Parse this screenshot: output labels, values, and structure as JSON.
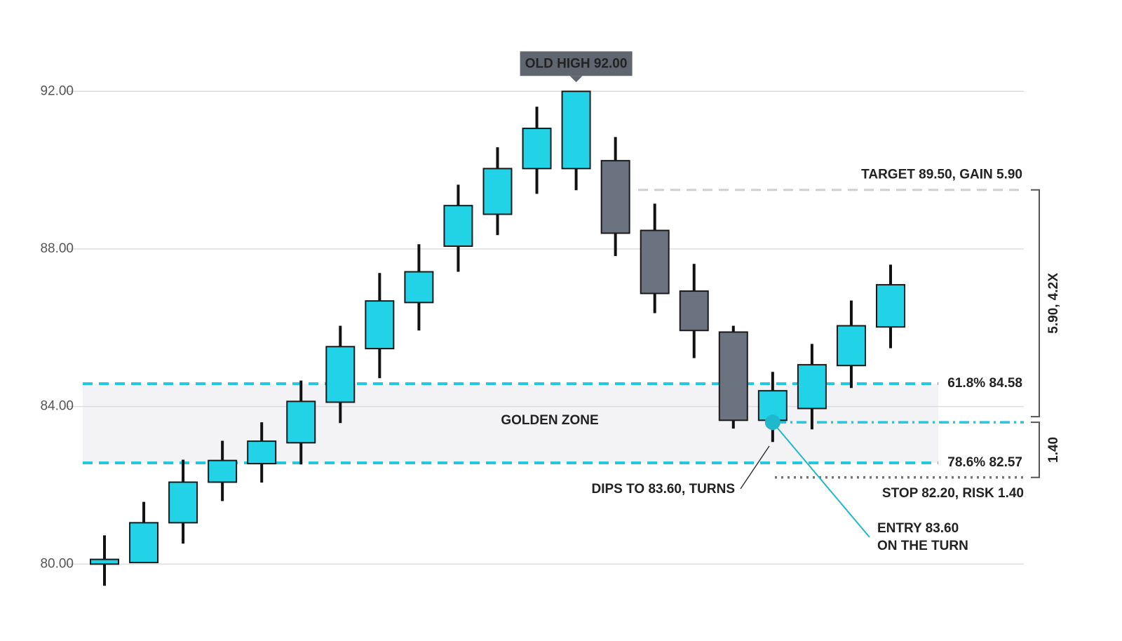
{
  "chart_data": {
    "type": "candlestick",
    "open": [
      80.0,
      80.04,
      81.05,
      82.08,
      82.55,
      83.08,
      84.11,
      85.47,
      86.64,
      88.07,
      88.88,
      90.04,
      90.04,
      90.24,
      88.47,
      86.93,
      85.89,
      83.65,
      83.95,
      85.04,
      86.02
    ],
    "high": [
      80.73,
      81.58,
      82.65,
      83.13,
      83.6,
      84.66,
      86.05,
      87.39,
      88.12,
      89.63,
      90.58,
      91.61,
      92.0,
      90.84,
      89.15,
      87.62,
      86.05,
      84.88,
      85.59,
      86.69,
      87.6
    ],
    "low": [
      79.45,
      80.04,
      80.52,
      81.6,
      82.07,
      82.53,
      83.58,
      84.72,
      85.93,
      87.42,
      88.35,
      89.4,
      89.49,
      87.82,
      86.37,
      85.23,
      83.44,
      83.1,
      83.42,
      84.47,
      85.48
    ],
    "close": [
      80.12,
      81.05,
      82.08,
      82.63,
      83.12,
      84.13,
      85.52,
      86.68,
      87.42,
      89.1,
      90.04,
      91.06,
      92.0,
      88.4,
      86.87,
      85.93,
      83.65,
      84.4,
      85.06,
      86.05,
      87.09
    ],
    "up_color": "#22d3e8",
    "down_color": "#6b7280",
    "ylim": [
      78.6,
      93.5
    ],
    "yticks": [
      {
        "value": 80,
        "label": "80.00"
      },
      {
        "value": 84,
        "label": "84.00"
      },
      {
        "value": 88,
        "label": "88.00"
      },
      {
        "value": 92,
        "label": "92.00"
      }
    ],
    "grid": true,
    "levels": [
      {
        "label": "61.8% 84.58",
        "value": 84.58,
        "color": "#22c7e0",
        "style": "dashed"
      },
      {
        "label": "78.6% 82.57",
        "value": 82.57,
        "color": "#22c7e0",
        "style": "dashed"
      },
      {
        "label": "TARGET 89.50, GAIN 5.90",
        "value": 89.5,
        "color": "#d0d0d0",
        "style": "dashed"
      },
      {
        "label": "STOP 82.20, RISK 1.40",
        "value": 82.2,
        "color": "#777777",
        "style": "dotted"
      }
    ],
    "zone_label": "GOLDEN ZONE",
    "callout": {
      "label": "OLD HIGH 92.00",
      "value": 92
    },
    "entry": {
      "value": 83.6,
      "color": "#22c7e0",
      "label": [
        "ENTRY 83.60",
        "ON THE TURN"
      ]
    },
    "dip_note": "DIPS TO 83.60, TURNS",
    "brackets": [
      {
        "label": "5.90, 4.2X"
      },
      {
        "label": "1.40"
      }
    ]
  }
}
